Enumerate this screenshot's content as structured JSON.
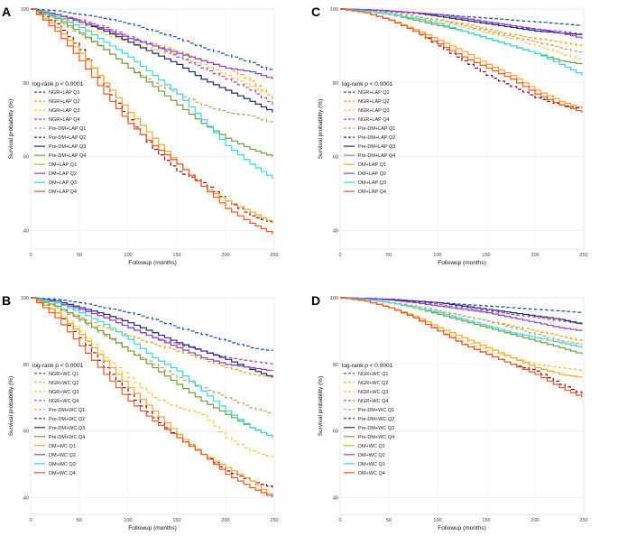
{
  "chart_data": [
    {
      "panel": "A",
      "type": "line",
      "xlabel": "Followup (months)",
      "ylabel": "Survival probability (%)",
      "xlim": [
        0,
        250
      ],
      "ylim": [
        35,
        100
      ],
      "x_ticks": [
        0,
        50,
        100,
        150,
        200,
        250
      ],
      "y_ticks": [
        40,
        60,
        80,
        100
      ],
      "annotation": "log-rank p < 0.0001",
      "x": [
        0,
        25,
        50,
        75,
        100,
        125,
        150,
        175,
        200,
        225,
        248
      ],
      "series": [
        {
          "name": "NGR+LAP Q1",
          "color": "#1f4e9e",
          "dashed": true,
          "values": [
            100,
            99.5,
            98.5,
            97.5,
            96,
            94,
            92,
            89.5,
            87.5,
            85.5,
            83
          ]
        },
        {
          "name": "NGR+LAP Q2",
          "color": "#e6a91e",
          "dashed": true,
          "values": [
            100,
            98,
            96,
            94,
            92,
            90.5,
            88.5,
            86,
            84,
            80.5,
            75.5
          ]
        },
        {
          "name": "NGR+LAP Q3",
          "color": "#f2c94c",
          "dashed": true,
          "values": [
            100,
            97.5,
            95,
            93,
            91,
            89,
            87,
            85,
            82,
            79,
            76
          ]
        },
        {
          "name": "NGR+LAP Q4",
          "color": "#a64ac9",
          "dashed": true,
          "values": [
            100,
            98.5,
            97,
            95,
            92.5,
            90,
            87,
            84,
            81,
            78,
            74
          ]
        },
        {
          "name": "Pre-DM+LAP Q1",
          "color": "#c8a165",
          "dashed": true,
          "values": [
            100,
            97,
            93,
            89,
            84,
            80,
            77,
            74,
            72,
            71,
            69
          ]
        },
        {
          "name": "Pre-DM+LAP Q2",
          "color": "#7a1020",
          "dashed": true,
          "values": [
            100,
            96,
            89,
            79,
            70,
            62,
            56,
            53,
            48,
            44,
            42
          ]
        },
        {
          "name": "Pre-DM+LAP Q3",
          "color": "#1b2a6b",
          "dashed": false,
          "values": [
            100,
            98.5,
            96.5,
            94,
            91,
            88,
            85,
            81,
            78,
            75,
            72
          ]
        },
        {
          "name": "Pre-DM+LAP Q4",
          "color": "#6ea043",
          "dashed": false,
          "values": [
            100,
            97.5,
            93.5,
            89,
            84,
            79,
            74,
            69,
            65,
            62,
            60
          ]
        },
        {
          "name": "DM+LAP Q1",
          "color": "#f5a623",
          "dashed": false,
          "values": [
            100,
            95,
            88,
            80,
            72,
            65,
            58,
            52,
            48,
            45,
            42
          ]
        },
        {
          "name": "DM+LAP Q2",
          "color": "#8e3fc6",
          "dashed": false,
          "values": [
            100,
            98.5,
            96.5,
            94.5,
            92,
            90,
            88,
            86,
            84,
            83,
            81
          ]
        },
        {
          "name": "DM+LAP Q3",
          "color": "#36d6e7",
          "dashed": false,
          "values": [
            100,
            98,
            95,
            91,
            87,
            82,
            77,
            70,
            63,
            58,
            54
          ]
        },
        {
          "name": "DM+LAP Q4",
          "color": "#f0541e",
          "dashed": false,
          "values": [
            100,
            94,
            86,
            77,
            69,
            63,
            58,
            52,
            46,
            42,
            39
          ]
        }
      ]
    },
    {
      "panel": "B",
      "type": "line",
      "xlabel": "Followup (months)",
      "ylabel": "Survival probability (%)",
      "xlim": [
        0,
        250
      ],
      "ylim": [
        35,
        100
      ],
      "x_ticks": [
        0,
        50,
        100,
        150,
        200,
        250
      ],
      "y_ticks": [
        40,
        60,
        80,
        100
      ],
      "annotation": "log-rank p < 0.0001",
      "x": [
        0,
        25,
        50,
        75,
        100,
        125,
        150,
        175,
        200,
        225,
        248
      ],
      "series": [
        {
          "name": "NGR+WC Q1",
          "color": "#1f4e9e",
          "dashed": true,
          "values": [
            100,
            99.5,
            98.5,
            97,
            95.5,
            93.5,
            91,
            89,
            87,
            85,
            84
          ]
        },
        {
          "name": "NGR+WC Q2",
          "color": "#e6a91e",
          "dashed": true,
          "values": [
            100,
            97,
            94,
            91,
            88.5,
            86,
            84,
            81.5,
            79,
            77,
            76
          ]
        },
        {
          "name": "NGR+WC Q3",
          "color": "#f2c94c",
          "dashed": true,
          "values": [
            100,
            96,
            90,
            82,
            76,
            70,
            67,
            65,
            58,
            54,
            52
          ]
        },
        {
          "name": "NGR+WC Q4",
          "color": "#a64ac9",
          "dashed": true,
          "values": [
            100,
            98.5,
            96.5,
            94,
            91,
            88,
            86,
            84,
            82,
            81,
            80
          ]
        },
        {
          "name": "Pre-DM+WC Q1",
          "color": "#c8a165",
          "dashed": true,
          "values": [
            100,
            97,
            93,
            88.5,
            84,
            80,
            76,
            73,
            70,
            67,
            65
          ]
        },
        {
          "name": "Pre-DM+WC Q2",
          "color": "#7a1020",
          "dashed": true,
          "values": [
            100,
            95.5,
            88,
            79,
            71,
            64,
            58,
            53,
            48,
            45,
            43
          ]
        },
        {
          "name": "Pre-DM+WC Q3",
          "color": "#1b2a6b",
          "dashed": false,
          "values": [
            100,
            99,
            97,
            95,
            92.5,
            89.5,
            86.5,
            84,
            81.5,
            78.5,
            76
          ]
        },
        {
          "name": "Pre-DM+WC Q4",
          "color": "#6ea043",
          "dashed": false,
          "values": [
            100,
            97.5,
            93.5,
            89,
            84,
            79,
            74,
            69,
            65,
            61,
            58
          ]
        },
        {
          "name": "DM+WC Q1",
          "color": "#f5a623",
          "dashed": false,
          "values": [
            100,
            95.5,
            89,
            81,
            73,
            66,
            59,
            53,
            49,
            45,
            40
          ]
        },
        {
          "name": "DM+WC Q2",
          "color": "#8e3fc6",
          "dashed": false,
          "values": [
            100,
            98.5,
            96.5,
            94,
            91,
            88,
            85,
            82,
            80,
            79,
            78
          ]
        },
        {
          "name": "DM+WC Q3",
          "color": "#36d6e7",
          "dashed": false,
          "values": [
            100,
            98.5,
            95.5,
            92,
            87.5,
            82,
            78,
            72,
            66,
            61,
            58
          ]
        },
        {
          "name": "DM+WC Q4",
          "color": "#f0541e",
          "dashed": false,
          "values": [
            100,
            94,
            85.5,
            77,
            69,
            63,
            58,
            53,
            47,
            43,
            40
          ]
        }
      ]
    },
    {
      "panel": "C",
      "type": "line",
      "xlabel": "Followup (months)",
      "ylabel": "Survival probability (%)",
      "xlim": [
        0,
        250
      ],
      "ylim": [
        35,
        100
      ],
      "x_ticks": [
        0,
        50,
        100,
        150,
        200,
        250
      ],
      "y_ticks": [
        40,
        60,
        80,
        100
      ],
      "annotation": "log-rank p < 0.0001",
      "x": [
        0,
        25,
        50,
        75,
        100,
        125,
        150,
        175,
        200,
        225,
        248
      ],
      "series": [
        {
          "name": "NGR+LAP Q1",
          "color": "#1f4e9e",
          "dashed": true,
          "values": [
            100,
            99.8,
            99.5,
            99,
            98.5,
            98,
            97.5,
            97,
            96.5,
            96,
            95.5
          ]
        },
        {
          "name": "NGR+LAP Q2",
          "color": "#e6a91e",
          "dashed": true,
          "values": [
            100,
            99.5,
            99,
            98,
            97,
            96,
            94.5,
            93,
            92,
            91,
            90
          ]
        },
        {
          "name": "NGR+LAP Q3",
          "color": "#f2c94c",
          "dashed": true,
          "values": [
            100,
            99.5,
            98.5,
            97.5,
            96.5,
            95,
            93.5,
            92,
            90,
            88,
            86
          ]
        },
        {
          "name": "NGR+LAP Q4",
          "color": "#a64ac9",
          "dashed": true,
          "values": [
            100,
            99.8,
            99.3,
            98.8,
            98,
            97,
            96,
            95,
            94.5,
            94,
            93
          ]
        },
        {
          "name": "Pre-DM+LAP Q1",
          "color": "#c8a165",
          "dashed": true,
          "values": [
            100,
            99.5,
            99,
            98,
            97,
            95.5,
            94,
            92.5,
            91,
            89.5,
            88
          ]
        },
        {
          "name": "Pre-DM+LAP Q2",
          "color": "#7a1020",
          "dashed": true,
          "values": [
            100,
            99,
            97,
            94,
            90,
            86,
            82,
            79,
            76,
            74,
            73
          ]
        },
        {
          "name": "Pre-DM+LAP Q3",
          "color": "#1b2a6b",
          "dashed": false,
          "values": [
            100,
            99.8,
            99.5,
            99,
            98,
            97,
            96,
            95,
            94,
            93.5,
            93
          ]
        },
        {
          "name": "Pre-DM+LAP Q4",
          "color": "#6ea043",
          "dashed": false,
          "values": [
            100,
            99.5,
            98.5,
            97,
            95.5,
            94,
            92,
            90,
            88,
            86,
            85
          ]
        },
        {
          "name": "DM+LAP Q1",
          "color": "#f5a623",
          "dashed": false,
          "values": [
            100,
            99,
            97,
            94.5,
            91.5,
            88.5,
            85,
            82,
            78,
            75,
            73
          ]
        },
        {
          "name": "DM+LAP Q2",
          "color": "#8e3fc6",
          "dashed": false,
          "values": [
            100,
            99.8,
            99.5,
            99,
            98.5,
            97.5,
            96.5,
            95.5,
            94.5,
            93.5,
            92
          ]
        },
        {
          "name": "DM+LAP Q3",
          "color": "#36d6e7",
          "dashed": false,
          "values": [
            100,
            99.5,
            98.5,
            97.5,
            96,
            94,
            92,
            90,
            88,
            85,
            82
          ]
        },
        {
          "name": "DM+LAP Q4",
          "color": "#f0541e",
          "dashed": false,
          "values": [
            100,
            99,
            97,
            94,
            90.5,
            87,
            84,
            81,
            77,
            74,
            72
          ]
        }
      ]
    },
    {
      "panel": "D",
      "type": "line",
      "xlabel": "Followup (months)",
      "ylabel": "Survival probability (%)",
      "xlim": [
        0,
        250
      ],
      "ylim": [
        35,
        100
      ],
      "x_ticks": [
        0,
        50,
        100,
        150,
        200,
        250
      ],
      "y_ticks": [
        40,
        60,
        80,
        100
      ],
      "annotation": "log-rank p < 0.0001",
      "x": [
        0,
        25,
        50,
        75,
        100,
        125,
        150,
        175,
        200,
        225,
        248
      ],
      "series": [
        {
          "name": "NGR+WC Q1",
          "color": "#1f4e9e",
          "dashed": true,
          "values": [
            100,
            99.8,
            99.5,
            99,
            98.5,
            98,
            97.5,
            97,
            96.5,
            96,
            95.5
          ]
        },
        {
          "name": "NGR+WC Q2",
          "color": "#e6a91e",
          "dashed": true,
          "values": [
            100,
            99.5,
            98.5,
            97.5,
            96,
            94.5,
            93,
            91.5,
            90,
            88.5,
            87
          ]
        },
        {
          "name": "NGR+WC Q3",
          "color": "#f2c94c",
          "dashed": true,
          "values": [
            100,
            99,
            97,
            94,
            90,
            87,
            84,
            82,
            80,
            79,
            78
          ]
        },
        {
          "name": "NGR+WC Q4",
          "color": "#a64ac9",
          "dashed": true,
          "values": [
            100,
            99.8,
            99.3,
            98.8,
            98,
            97,
            96,
            95,
            94,
            93,
            92
          ]
        },
        {
          "name": "Pre-DM+WC Q1",
          "color": "#c8a165",
          "dashed": true,
          "values": [
            100,
            99.5,
            98.5,
            97.5,
            96,
            94.5,
            93,
            91,
            89,
            87,
            86
          ]
        },
        {
          "name": "Pre-DM+WC Q2",
          "color": "#7a1020",
          "dashed": true,
          "values": [
            100,
            99,
            97,
            94,
            90,
            86,
            83,
            80,
            78,
            74,
            71
          ]
        },
        {
          "name": "Pre-DM+WC Q3",
          "color": "#1b2a6b",
          "dashed": false,
          "values": [
            100,
            99.8,
            99.5,
            99,
            98.5,
            97.5,
            96.5,
            95.5,
            94.5,
            93.5,
            92
          ]
        },
        {
          "name": "Pre-DM+WC Q4",
          "color": "#6ea043",
          "dashed": false,
          "values": [
            100,
            99.5,
            98.5,
            97,
            95,
            93,
            91,
            89,
            87,
            85,
            83
          ]
        },
        {
          "name": "DM+WC Q1",
          "color": "#f5a623",
          "dashed": false,
          "values": [
            100,
            99,
            97,
            94.5,
            91,
            88,
            85,
            82,
            79,
            77,
            76
          ]
        },
        {
          "name": "DM+WC Q2",
          "color": "#8e3fc6",
          "dashed": false,
          "values": [
            100,
            99.8,
            99.3,
            98.5,
            97.5,
            96.5,
            95.5,
            94,
            92.5,
            91,
            90
          ]
        },
        {
          "name": "DM+WC Q3",
          "color": "#36d6e7",
          "dashed": false,
          "values": [
            100,
            99.5,
            98.5,
            97,
            95.5,
            93.5,
            91.5,
            89.5,
            88,
            86.5,
            85
          ]
        },
        {
          "name": "DM+WC Q4",
          "color": "#f0541e",
          "dashed": false,
          "values": [
            100,
            99,
            97,
            94,
            90,
            86,
            83,
            80,
            77,
            73,
            70
          ]
        }
      ]
    }
  ]
}
